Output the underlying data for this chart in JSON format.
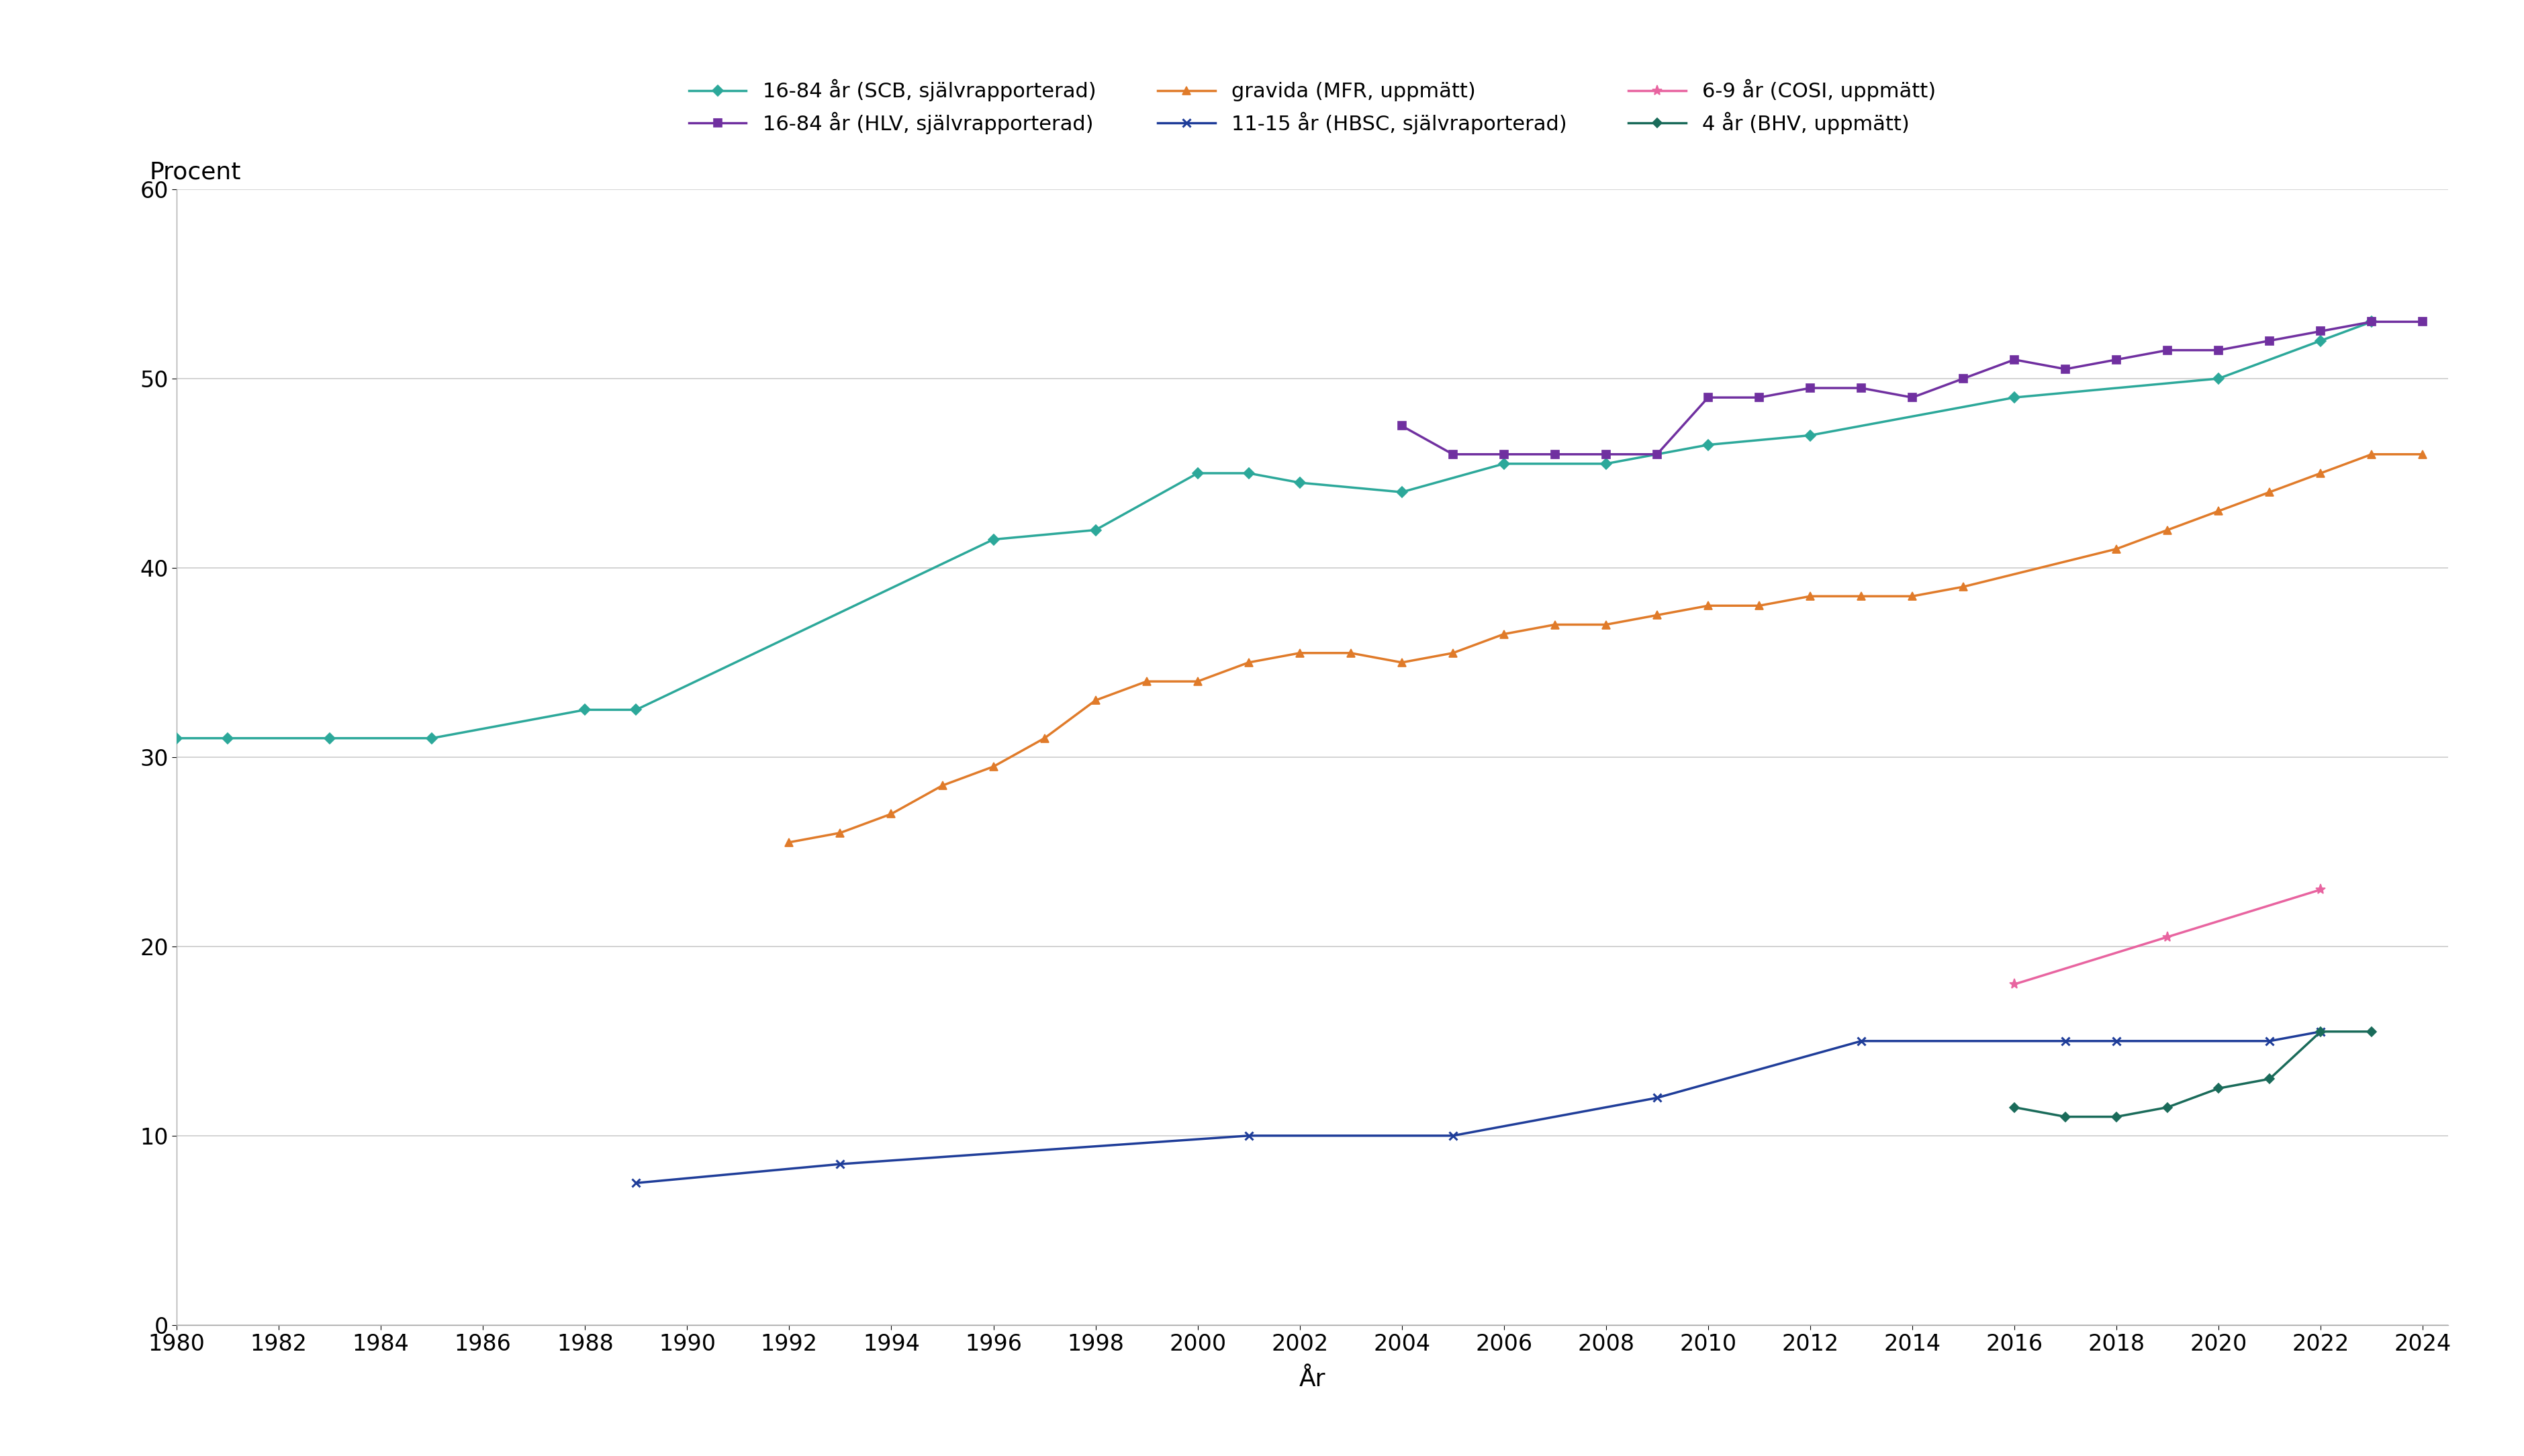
{
  "series": {
    "scb": {
      "label": "16-84 år (SCB, självrapporterad)",
      "color": "#2ca89a",
      "marker": "D",
      "markersize": 8,
      "linewidth": 2.5,
      "x": [
        1980,
        1981,
        1983,
        1985,
        1988,
        1989,
        1996,
        1998,
        2000,
        2001,
        2002,
        2004,
        2006,
        2008,
        2010,
        2012,
        2016,
        2020,
        2022,
        2023
      ],
      "y": [
        31,
        31,
        31,
        31,
        32.5,
        32.5,
        41.5,
        42,
        45,
        45,
        44.5,
        44,
        45.5,
        45.5,
        46.5,
        47,
        49,
        50,
        52,
        53
      ]
    },
    "hlv": {
      "label": "16-84 år (HLV, självrapporterad)",
      "color": "#7030a0",
      "marker": "s",
      "markersize": 8,
      "linewidth": 2.5,
      "x": [
        2004,
        2005,
        2006,
        2007,
        2008,
        2009,
        2010,
        2011,
        2012,
        2013,
        2014,
        2015,
        2016,
        2017,
        2018,
        2019,
        2020,
        2021,
        2022,
        2023,
        2024
      ],
      "y": [
        47.5,
        46,
        46,
        46,
        46,
        46,
        49,
        49,
        49.5,
        49.5,
        49,
        50,
        51,
        50.5,
        51,
        51.5,
        51.5,
        52,
        52.5,
        53,
        53
      ]
    },
    "mfr": {
      "label": "gravida (MFR, uppmätt)",
      "color": "#e07b2a",
      "marker": "^",
      "markersize": 8,
      "linewidth": 2.5,
      "x": [
        1992,
        1993,
        1994,
        1995,
        1996,
        1997,
        1998,
        1999,
        2000,
        2001,
        2002,
        2003,
        2004,
        2005,
        2006,
        2007,
        2008,
        2009,
        2010,
        2011,
        2012,
        2013,
        2014,
        2015,
        2018,
        2019,
        2020,
        2021,
        2022,
        2023,
        2024
      ],
      "y": [
        25.5,
        26,
        27,
        28.5,
        29.5,
        31,
        33,
        34,
        34,
        35,
        35.5,
        35.5,
        35,
        35.5,
        36.5,
        37,
        37,
        37.5,
        38,
        38,
        38.5,
        38.5,
        38.5,
        39,
        41,
        42,
        43,
        44,
        45,
        46,
        46
      ]
    },
    "hbsc": {
      "label": "11-15 år (HBSC, självraporterad)",
      "color": "#1f3d99",
      "marker": "x",
      "markersize": 9,
      "linewidth": 2.5,
      "x": [
        1989,
        1993,
        2001,
        2005,
        2009,
        2013,
        2017,
        2018,
        2021,
        2022
      ],
      "y": [
        7.5,
        8.5,
        10,
        10,
        12,
        15,
        15,
        15,
        15,
        15.5
      ]
    },
    "cosi": {
      "label": "6-9 år (COSI, uppmätt)",
      "color": "#e864a0",
      "marker": "*",
      "markersize": 11,
      "linewidth": 2.5,
      "x": [
        2016,
        2019,
        2022
      ],
      "y": [
        18,
        20.5,
        23
      ]
    },
    "bhv": {
      "label": "4 år (BHV, uppmätt)",
      "color": "#1a6b5a",
      "marker": "D",
      "markersize": 7,
      "linewidth": 2.5,
      "x": [
        2016,
        2017,
        2018,
        2019,
        2020,
        2021,
        2022,
        2023
      ],
      "y": [
        11.5,
        11,
        11,
        11.5,
        12.5,
        13,
        15.5,
        15.5
      ]
    }
  },
  "xlim": [
    1980,
    2024.5
  ],
  "ylim": [
    0,
    60
  ],
  "yticks": [
    0,
    10,
    20,
    30,
    40,
    50,
    60
  ],
  "xticks": [
    1980,
    1982,
    1984,
    1986,
    1988,
    1990,
    1992,
    1994,
    1996,
    1998,
    2000,
    2002,
    2004,
    2006,
    2008,
    2010,
    2012,
    2014,
    2016,
    2018,
    2020,
    2022,
    2024
  ],
  "xlabel": "År",
  "ylabel": "Procent",
  "background_color": "#ffffff",
  "grid_color": "#cccccc",
  "legend_order": [
    "scb",
    "hlv",
    "mfr",
    "hbsc",
    "cosi",
    "bhv"
  ]
}
